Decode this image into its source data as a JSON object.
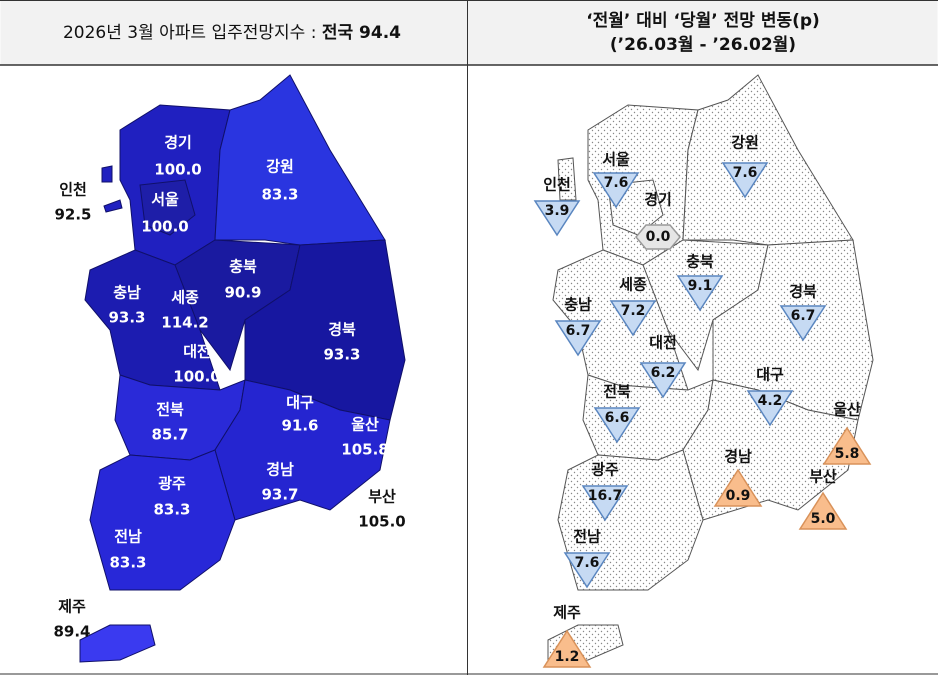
{
  "header": {
    "left": {
      "text": "2026년 3월 아파트 입주전망지수 : ",
      "bold": "전국 94.4"
    },
    "right": {
      "line1": "‘전월’ 대비 ‘당월’ 전망 변동(p)",
      "line2": "(’26.03월  -  ’26.02월)"
    }
  },
  "left_map": {
    "regions": [
      {
        "name": "경기",
        "value": "100.0"
      },
      {
        "name": "서울",
        "value": "100.0"
      },
      {
        "name": "인천",
        "value": "92.5"
      },
      {
        "name": "강원",
        "value": "83.3"
      },
      {
        "name": "충북",
        "value": "90.9"
      },
      {
        "name": "충남",
        "value": "93.3"
      },
      {
        "name": "세종",
        "value": "114.2"
      },
      {
        "name": "대전",
        "value": "100.0"
      },
      {
        "name": "경북",
        "value": "93.3"
      },
      {
        "name": "대구",
        "value": "91.6"
      },
      {
        "name": "울산",
        "value": "105.8"
      },
      {
        "name": "전북",
        "value": "85.7"
      },
      {
        "name": "광주",
        "value": "83.3"
      },
      {
        "name": "경남",
        "value": "93.7"
      },
      {
        "name": "부산",
        "value": "105.0"
      },
      {
        "name": "전남",
        "value": "83.3"
      },
      {
        "name": "제주",
        "value": "89.4"
      }
    ]
  },
  "right_map": {
    "regions": [
      {
        "name": "서울",
        "value": "7.6",
        "direction": "down"
      },
      {
        "name": "인천",
        "value": "3.9",
        "direction": "down"
      },
      {
        "name": "경기",
        "value": "0.0",
        "direction": "flat"
      },
      {
        "name": "강원",
        "value": "7.6",
        "direction": "down"
      },
      {
        "name": "충북",
        "value": "9.1",
        "direction": "down"
      },
      {
        "name": "세종",
        "value": "7.2",
        "direction": "down"
      },
      {
        "name": "충남",
        "value": "6.7",
        "direction": "down"
      },
      {
        "name": "대전",
        "value": "6.2",
        "direction": "down"
      },
      {
        "name": "경북",
        "value": "6.7",
        "direction": "down"
      },
      {
        "name": "대구",
        "value": "4.2",
        "direction": "down"
      },
      {
        "name": "울산",
        "value": "5.8",
        "direction": "up"
      },
      {
        "name": "경남",
        "value": "0.9",
        "direction": "up"
      },
      {
        "name": "부산",
        "value": "5.0",
        "direction": "up"
      },
      {
        "name": "전북",
        "value": "6.6",
        "direction": "down"
      },
      {
        "name": "광주",
        "value": "16.7",
        "direction": "down"
      },
      {
        "name": "전남",
        "value": "7.6",
        "direction": "down"
      },
      {
        "name": "제주",
        "value": "1.2",
        "direction": "up"
      }
    ]
  }
}
